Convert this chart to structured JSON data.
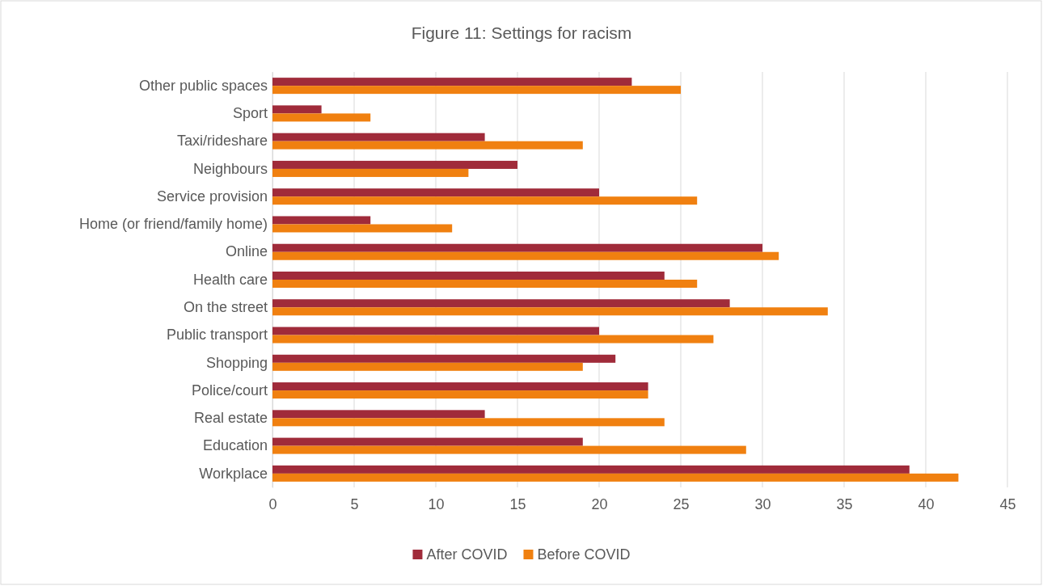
{
  "chart_data": {
    "type": "bar",
    "orientation": "horizontal",
    "title": "Figure 11: Settings for racism",
    "categories": [
      "Other public spaces",
      "Sport",
      "Taxi/rideshare",
      "Neighbours",
      "Service provision",
      "Home (or friend/family home)",
      "Online",
      "Health care",
      "On the street",
      "Public transport",
      "Shopping",
      "Police/court",
      "Real estate",
      "Education",
      "Workplace"
    ],
    "series": [
      {
        "name": "After COVID",
        "color": "#a02b3a",
        "values": [
          22,
          3,
          13,
          15,
          20,
          6,
          30,
          24,
          28,
          20,
          21,
          23,
          13,
          19,
          39
        ]
      },
      {
        "name": "Before COVID",
        "color": "#f08010",
        "values": [
          25,
          6,
          19,
          12,
          26,
          11,
          31,
          26,
          34,
          27,
          19,
          23,
          24,
          29,
          42
        ]
      }
    ],
    "xlim": [
      0,
      45
    ],
    "xticks": [
      0,
      5,
      10,
      15,
      20,
      25,
      30,
      35,
      40,
      45
    ],
    "grid": "x",
    "legend": "bottom"
  }
}
